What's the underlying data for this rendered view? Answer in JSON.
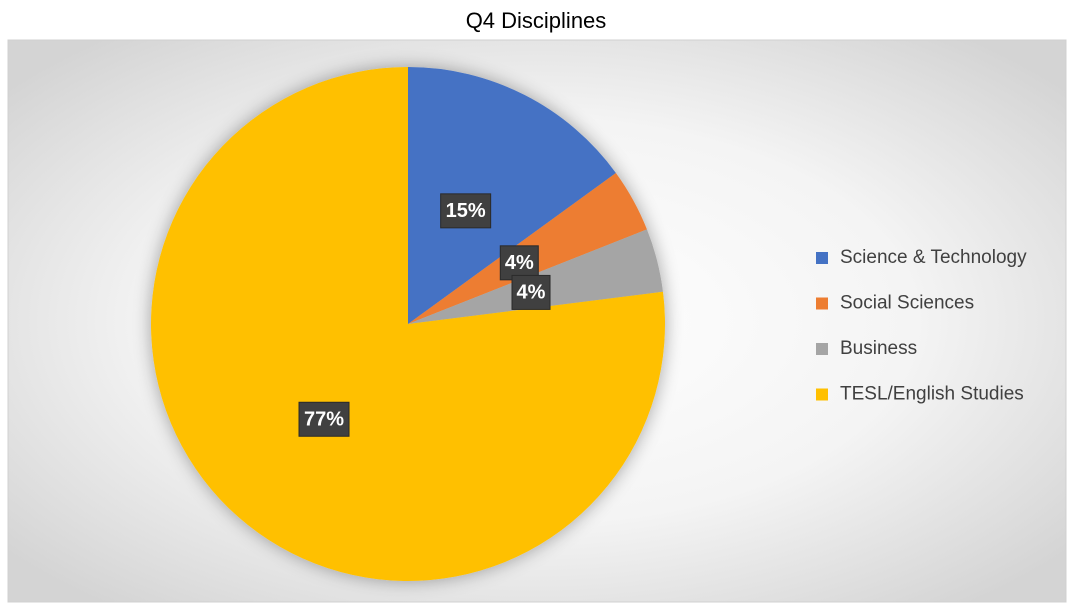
{
  "chart_data": {
    "type": "pie",
    "title": "Q4 Disciplines",
    "categories": [
      "Science & Technology",
      "Social Sciences",
      "Business",
      "TESL/English Studies"
    ],
    "values": [
      15,
      4,
      4,
      77
    ],
    "value_labels": [
      "15%",
      "4%",
      "4%",
      "77%"
    ],
    "colors": [
      "#4472c4",
      "#ed7d31",
      "#a5a5a5",
      "#ffc000"
    ],
    "legend": "right"
  }
}
